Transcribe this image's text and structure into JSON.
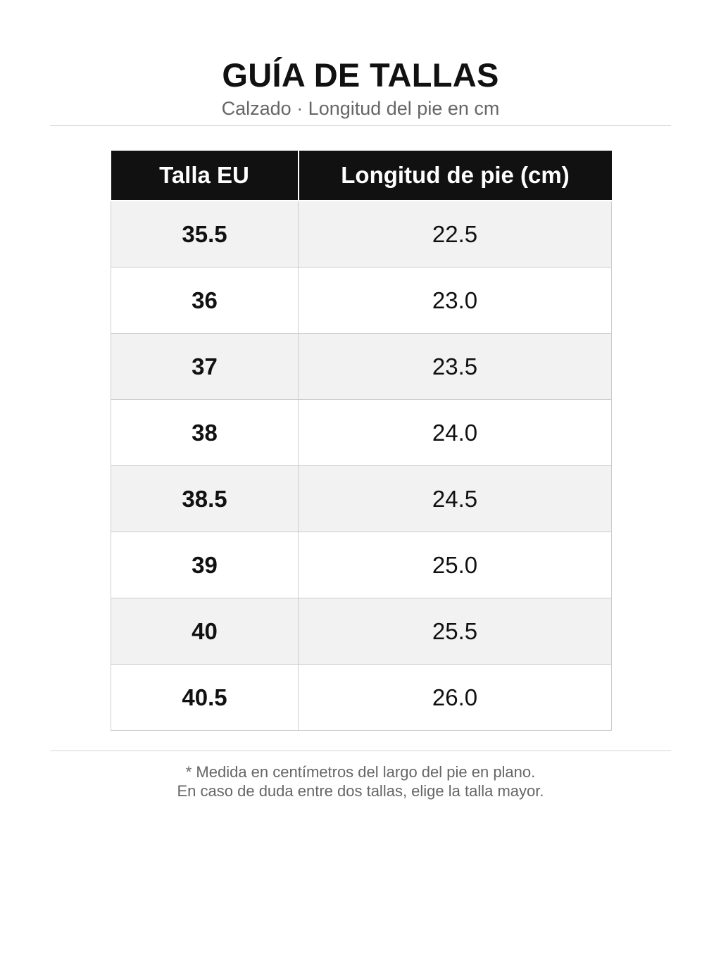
{
  "header": {
    "title": "GUÍA DE TALLAS",
    "subtitle": "Calzado · Longitud del pie en cm"
  },
  "table": {
    "columns": [
      "Talla EU",
      "Longitud de pie (cm)"
    ],
    "rows": [
      {
        "eu": "35.5",
        "cm": "22.5"
      },
      {
        "eu": "36",
        "cm": "23.0"
      },
      {
        "eu": "37",
        "cm": "23.5"
      },
      {
        "eu": "38",
        "cm": "24.0"
      },
      {
        "eu": "38.5",
        "cm": "24.5"
      },
      {
        "eu": "39",
        "cm": "25.0"
      },
      {
        "eu": "40",
        "cm": "25.5"
      },
      {
        "eu": "40.5",
        "cm": "26.0"
      }
    ]
  },
  "notes": {
    "line1": "* Medida en centímetros del largo del pie en plano.",
    "line2": "En caso de duda entre dos tallas, elige la talla mayor."
  },
  "colors": {
    "header_bg": "#111111",
    "header_text": "#ffffff",
    "stripe": "#f2f2f2",
    "muted_text": "#666666"
  }
}
